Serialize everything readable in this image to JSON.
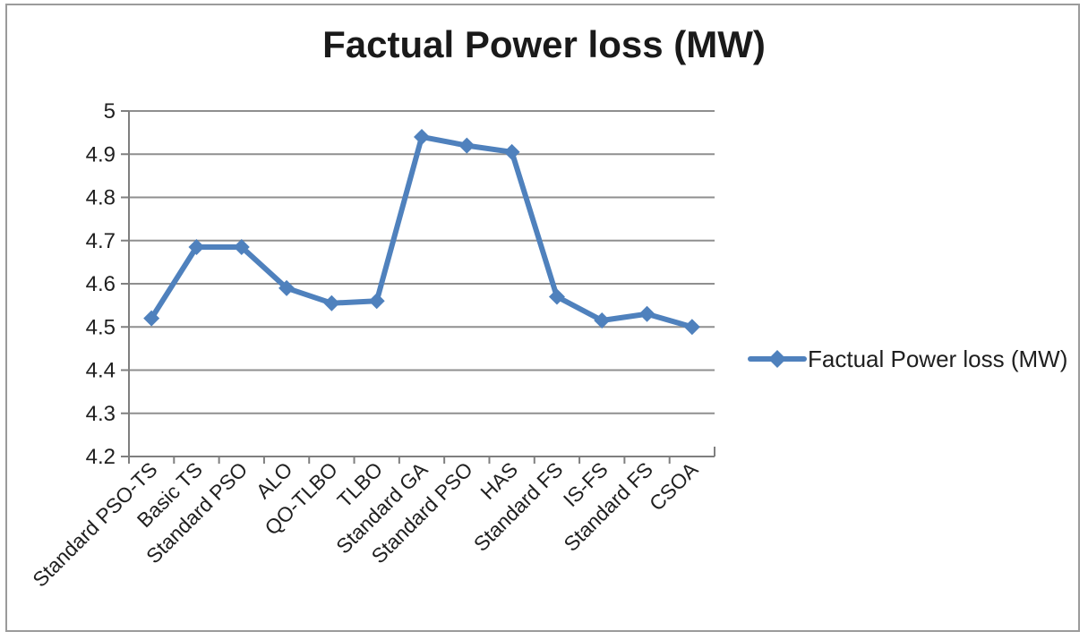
{
  "chart_data": {
    "type": "line",
    "title": "Factual Power loss (MW)",
    "categories": [
      "Standard PSO-TS",
      "Basic TS",
      "Standard PSO",
      "ALO",
      "QO-TLBO",
      "TLBO",
      "Standard GA",
      "Standard PSO",
      "HAS",
      "Standard FS",
      "IS-FS",
      "Standard FS",
      "CSOA"
    ],
    "series": [
      {
        "name": "Factual Power loss (MW)",
        "values": [
          4.52,
          4.685,
          4.685,
          4.59,
          4.555,
          4.56,
          4.94,
          4.92,
          4.905,
          4.57,
          4.515,
          4.53,
          4.5
        ]
      }
    ],
    "xlabel": "",
    "ylabel": "",
    "ylim": [
      4.2,
      5
    ],
    "yticks": [
      "4.2",
      "4.3",
      "4.4",
      "4.5",
      "4.6",
      "4.7",
      "4.8",
      "4.9",
      "5"
    ],
    "grid": true,
    "legend_position": "right",
    "marker_style": "diamond",
    "x_label_rotation_deg": -45,
    "colors": {
      "series": "#4F81BD",
      "gridline": "#8F8F8F",
      "axis": "#7F7F7F",
      "text": "#1F1F1F",
      "title": "#1A1A1A",
      "frame_border": "#9B9B9B",
      "background": "#FFFFFF"
    }
  }
}
